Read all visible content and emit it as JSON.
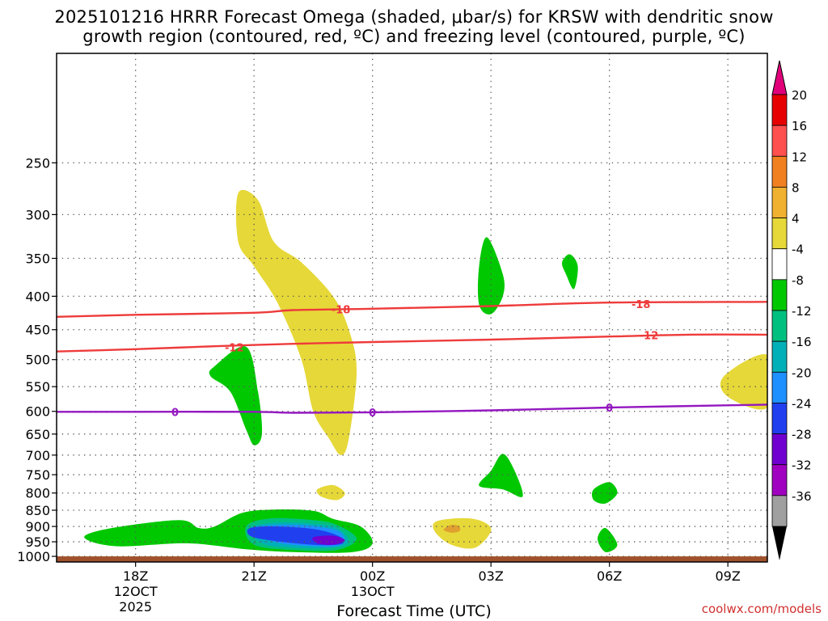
{
  "chart_data": {
    "type": "contour",
    "title_line1": "2025101216 HRRR Forecast Omega (shaded, μbar/s) for KRSW with dendritic snow",
    "title_line2": "growth region (contoured, red, ºC) and freezing level (contoured, purple, ºC)",
    "xlabel": "Forecast Time (UTC)",
    "credit": "coolwx.com/models",
    "xlim": [
      16,
      34
    ],
    "ylim": [
      1020,
      170
    ],
    "x_ticks": [
      {
        "x": 18,
        "label": "18Z",
        "sub1": "12OCT",
        "sub2": "2025"
      },
      {
        "x": 21,
        "label": "21Z",
        "sub1": "",
        "sub2": ""
      },
      {
        "x": 24,
        "label": "00Z",
        "sub1": "13OCT",
        "sub2": ""
      },
      {
        "x": 27,
        "label": "03Z",
        "sub1": "",
        "sub2": ""
      },
      {
        "x": 30,
        "label": "06Z",
        "sub1": "",
        "sub2": ""
      },
      {
        "x": 33,
        "label": "09Z",
        "sub1": "",
        "sub2": ""
      }
    ],
    "y_ticks": [
      250,
      300,
      350,
      400,
      450,
      500,
      550,
      600,
      650,
      700,
      750,
      800,
      850,
      900,
      950,
      1000
    ],
    "y_tick_labels": [
      "250",
      "300",
      "350",
      "400",
      "450",
      "500",
      "550",
      "600",
      "650",
      "700",
      "750",
      "800",
      "850",
      "900",
      "950",
      "1000"
    ],
    "contours": [
      {
        "name": "-18",
        "color": "#ee3b3b",
        "points": [
          [
            16,
            430
          ],
          [
            18,
            427
          ],
          [
            21,
            424
          ],
          [
            22,
            420
          ],
          [
            24,
            418
          ],
          [
            27,
            414
          ],
          [
            30,
            409
          ],
          [
            34,
            408
          ]
        ],
        "labels": [
          [
            23.2,
            419
          ],
          [
            30.8,
            411
          ]
        ]
      },
      {
        "name": "-12",
        "color": "#ee3b3b",
        "points": [
          [
            16,
            486
          ],
          [
            18,
            482
          ],
          [
            20,
            477
          ],
          [
            22,
            473
          ],
          [
            24,
            470
          ],
          [
            27,
            466
          ],
          [
            30,
            461
          ],
          [
            32,
            458
          ],
          [
            34,
            458
          ]
        ],
        "labels": [
          [
            20.5,
            479
          ],
          [
            31,
            459
          ]
        ]
      },
      {
        "name": "0",
        "color": "#9418c0",
        "points": [
          [
            16,
            601
          ],
          [
            18,
            601
          ],
          [
            21,
            601
          ],
          [
            22,
            603
          ],
          [
            24,
            602
          ],
          [
            27,
            598
          ],
          [
            30,
            592
          ],
          [
            34,
            586
          ]
        ],
        "labels": [
          [
            19,
            601
          ],
          [
            24,
            602
          ],
          [
            30,
            592
          ]
        ]
      }
    ],
    "omega_regions": [
      {
        "value": 4,
        "color": "#e6d838",
        "points": [
          [
            20.6,
            278
          ],
          [
            21.1,
            285
          ],
          [
            21.5,
            330
          ],
          [
            22.2,
            355
          ],
          [
            23,
            400
          ],
          [
            23.4,
            450
          ],
          [
            23.6,
            520
          ],
          [
            23.4,
            660
          ],
          [
            23.2,
            700
          ],
          [
            22.9,
            660
          ],
          [
            22.5,
            600
          ],
          [
            22.2,
            500
          ],
          [
            21.6,
            410
          ],
          [
            21.0,
            360
          ],
          [
            20.6,
            330
          ]
        ]
      },
      {
        "value": -4,
        "color": "#00c800",
        "points": [
          [
            20.0,
            512
          ],
          [
            20.8,
            478
          ],
          [
            21.1,
            560
          ],
          [
            21.2,
            650
          ],
          [
            21.0,
            676
          ],
          [
            20.8,
            640
          ],
          [
            20.4,
            560
          ],
          [
            19.9,
            530
          ]
        ]
      },
      {
        "value": -4,
        "color": "#00c800",
        "points": [
          [
            26.9,
            325
          ],
          [
            27.3,
            370
          ],
          [
            27.3,
            400
          ],
          [
            27.0,
            426
          ],
          [
            26.7,
            412
          ],
          [
            26.7,
            360
          ]
        ]
      },
      {
        "value": -4,
        "color": "#00c800",
        "points": [
          [
            29.0,
            345
          ],
          [
            29.2,
            360
          ],
          [
            29.1,
            390
          ],
          [
            28.9,
            370
          ],
          [
            28.8,
            355
          ]
        ]
      },
      {
        "value": 4,
        "color": "#e6d838",
        "points": [
          [
            34,
            492
          ],
          [
            34,
            592
          ],
          [
            33.0,
            570
          ],
          [
            32.9,
            530
          ]
        ]
      },
      {
        "value": -4,
        "color": "#00c800",
        "points": [
          [
            27.3,
            697
          ],
          [
            27.6,
            740
          ],
          [
            27.8,
            810
          ],
          [
            27.3,
            790
          ],
          [
            26.7,
            780
          ],
          [
            27.0,
            740
          ]
        ]
      },
      {
        "value": 4,
        "color": "#e6d838",
        "points": [
          [
            23.0,
            778
          ],
          [
            23.3,
            800
          ],
          [
            23.1,
            820
          ],
          [
            22.7,
            810
          ],
          [
            22.6,
            790
          ]
        ]
      },
      {
        "value": -4,
        "color": "#00c800",
        "points": [
          [
            30.0,
            770
          ],
          [
            30.2,
            800
          ],
          [
            29.9,
            830
          ],
          [
            29.6,
            820
          ],
          [
            29.6,
            790
          ]
        ]
      },
      {
        "value": -4,
        "color": "#00c800",
        "points": [
          [
            29.9,
            905
          ],
          [
            30.2,
            960
          ],
          [
            29.9,
            985
          ],
          [
            29.7,
            940
          ]
        ]
      },
      {
        "value": 4,
        "color": "#e6d838",
        "points": [
          [
            25.6,
            885
          ],
          [
            26.3,
            874
          ],
          [
            26.8,
            885
          ],
          [
            27.0,
            915
          ],
          [
            26.6,
            970
          ],
          [
            26.0,
            960
          ],
          [
            25.6,
            920
          ]
        ]
      },
      {
        "value": 8,
        "color": "#e0a030",
        "points": [
          [
            26.0,
            895
          ],
          [
            26.2,
            900
          ],
          [
            26.2,
            915
          ],
          [
            26.0,
            920
          ],
          [
            25.8,
            910
          ]
        ]
      },
      {
        "value": -4,
        "color": "#00c800",
        "points": [
          [
            16.7,
            935
          ],
          [
            17.4,
            905
          ],
          [
            19.1,
            880
          ],
          [
            19.6,
            905
          ],
          [
            20.0,
            900
          ],
          [
            20.7,
            858
          ],
          [
            21.5,
            848
          ],
          [
            22.5,
            852
          ],
          [
            23.0,
            876
          ],
          [
            23.7,
            900
          ],
          [
            24.0,
            955
          ],
          [
            23.5,
            985
          ],
          [
            22.0,
            985
          ],
          [
            20.8,
            975
          ],
          [
            19.3,
            955
          ],
          [
            17.5,
            965
          ]
        ]
      },
      {
        "value": -8,
        "color": "#00c080",
        "points": [
          [
            20.8,
            900
          ],
          [
            21.4,
            875
          ],
          [
            22.5,
            880
          ],
          [
            23.1,
            895
          ],
          [
            23.6,
            940
          ],
          [
            23.1,
            978
          ],
          [
            22.0,
            978
          ],
          [
            21.0,
            960
          ]
        ]
      },
      {
        "value": -12,
        "color": "#00b0b8",
        "points": [
          [
            20.9,
            905
          ],
          [
            21.6,
            888
          ],
          [
            22.5,
            892
          ],
          [
            23.1,
            905
          ],
          [
            23.4,
            950
          ],
          [
            23.0,
            970
          ],
          [
            22.0,
            970
          ],
          [
            21.2,
            955
          ]
        ]
      },
      {
        "value": -16,
        "color": "#1e90ff",
        "points": [
          [
            21.0,
            905
          ],
          [
            21.8,
            895
          ],
          [
            22.6,
            900
          ],
          [
            23.2,
            920
          ],
          [
            23.2,
            960
          ],
          [
            22.5,
            965
          ],
          [
            21.5,
            950
          ]
        ]
      },
      {
        "value": -20,
        "color": "#2040f0",
        "points": [
          [
            20.9,
            905
          ],
          [
            21.6,
            900
          ],
          [
            22.6,
            910
          ],
          [
            23.2,
            935
          ],
          [
            23.2,
            958
          ],
          [
            22.5,
            960
          ],
          [
            21.4,
            945
          ],
          [
            20.9,
            930
          ]
        ]
      },
      {
        "value": -24,
        "color": "#7000d0",
        "points": [
          [
            22.5,
            935
          ],
          [
            23.0,
            930
          ],
          [
            23.3,
            945
          ],
          [
            23.0,
            960
          ],
          [
            22.6,
            955
          ]
        ]
      }
    ],
    "colorbar": {
      "labels": [
        "20",
        "16",
        "12",
        "8",
        "4",
        "-4",
        "-8",
        "-12",
        "-16",
        "-20",
        "-24",
        "-28",
        "-32",
        "-36"
      ],
      "bands": [
        "#e60000",
        "#ff5050",
        "#f08020",
        "#f0b030",
        "#e6d838",
        "#ffffff",
        "#00c800",
        "#00c080",
        "#00b0b8",
        "#1e90ff",
        "#2040f0",
        "#7000d0",
        "#a000c0",
        "#a0a0a0"
      ],
      "top_arrow_color": "#e0007a",
      "bottom_arrow_color": "#000000"
    },
    "terrain": {
      "color": "#a0522d",
      "pressure_top": 1000
    }
  }
}
